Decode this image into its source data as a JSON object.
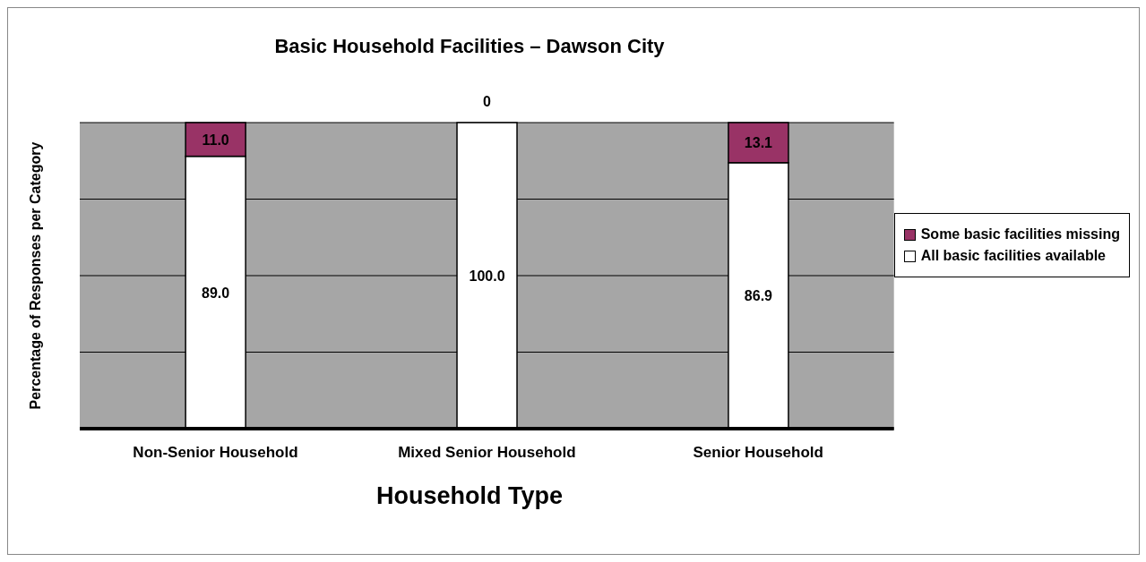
{
  "chart_data": {
    "type": "bar",
    "title": "Basic Household Facilities – Dawson City",
    "xlabel": "Household Type",
    "ylabel": "Percentage of Responses per Category",
    "categories": [
      "Non-Senior  Household",
      "Mixed Senior Household",
      "Senior Household"
    ],
    "stacked": true,
    "series": [
      {
        "name": "All basic facilities available",
        "color": "#ffffff",
        "values": [
          89.0,
          100.0,
          86.9
        ],
        "value_labels": [
          "89.0",
          "100.0",
          "86.9"
        ]
      },
      {
        "name": "Some basic facilities missing",
        "color": "#993366",
        "values": [
          11.0,
          0,
          13.1
        ],
        "value_labels": [
          "11.0",
          "0",
          "13.1"
        ]
      }
    ],
    "ylim": [
      0,
      100
    ],
    "yticks": [
      {
        "value": 0,
        "label": null
      },
      {
        "value": 25,
        "label": null
      },
      {
        "value": 50,
        "label": null
      },
      {
        "value": 75,
        "label": null
      },
      {
        "value": 100,
        "label": null
      }
    ],
    "grid": "y",
    "legend": "right",
    "tick_labels": "x"
  }
}
